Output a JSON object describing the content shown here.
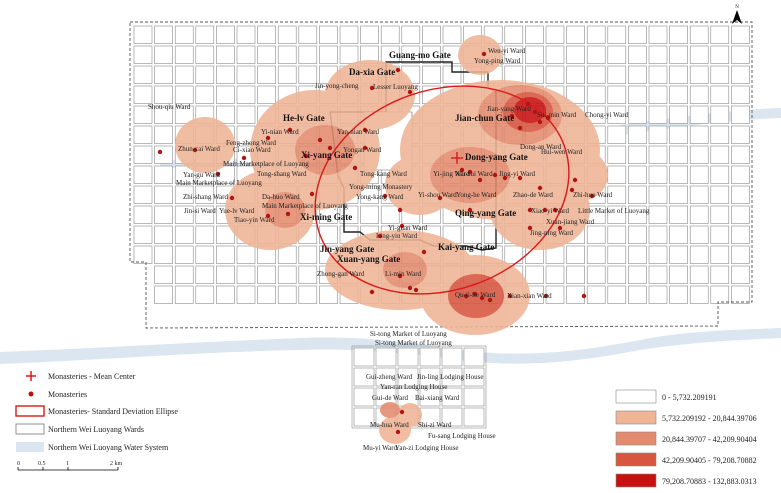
{
  "north_label": "N",
  "colors": {
    "water": "#dbe6f1",
    "ward_stroke": "#8a8a8a",
    "ellipse": "#d91a1a",
    "point": "#b21414",
    "density": [
      "#ffffff",
      "#efb596",
      "#e38b6e",
      "#d8553f",
      "#c81010"
    ]
  },
  "gates": [
    "Guang-mo Gate",
    "Da-xia Gate",
    "He-lv Gate",
    "Jian-chun Gate",
    "Xi-yang Gate",
    "Dong-yang Gate",
    "Xi-ming Gate",
    "Qing-yang Gate",
    "Jin-yang Gate",
    "Kai-yang Gate",
    "Xuan-yang Gate"
  ],
  "wards": [
    "Wen-yi Ward",
    "Yong-ping Ward",
    "Jin-yong-cheng",
    "Lesser Luoyang",
    "Shou-qiu Ward",
    "Jian-yang Ward",
    "Sui-min Ward",
    "Chong-yi Ward",
    "Yi-nian Ward",
    "Yan-nian Ward",
    "Feng-zhong Ward",
    "Ci-xiao Ward",
    "Zhun-cai Ward",
    "Yongan Ward",
    "Dong-an Ward",
    "Hui-wen Ward",
    "Main Marketplace of Luoyang",
    "Yan-gu Ward",
    "Tong-shang Ward",
    "Tong-kang Ward",
    "Xiu-sui Ward",
    "Jing-yi Ward",
    "Main Marketplace of Luoyang",
    "Yong-ming Monastery",
    "Zhi-shang Ward",
    "Yong-kang Ward",
    "Yi-jing Ward",
    "Zhao-de Ward",
    "Zhi-huo Ward",
    "Da-huo Ward",
    "Yi-shou Ward",
    "Yong-he Ward",
    "Main Marketplace of Luoyang",
    "Xiao-yi Ward",
    "Little Market of Luoyang",
    "Jin-si Ward",
    "Yue-lv Ward",
    "Xuan-jiang Ward",
    "Tiao-yin Ward",
    "Yi-guan Ward",
    "Jing-ning Ward",
    "Ling-yin Ward",
    "Zhong-gan Ward",
    "Li-min Ward",
    "Qu-ji-he Ward",
    "Xian-xian Ward",
    "Si-tong Market of Luoyang",
    "Si-tong Market of Luoyang",
    "Gui-zheng Ward",
    "Jin-ling Lodging House",
    "Yan-ran Lodging House",
    "Gui-de Ward",
    "Bai-xiang Ward",
    "Mu-hua Ward",
    "Shi-zi Ward",
    "Fu-sang Lodging House",
    "Mu-yi Ward",
    "Yan-zi Lodging House"
  ],
  "legend": {
    "mean_center": "Monasteries - Mean Center",
    "monasteries": "Monasteries",
    "ellipse": "Monasteries- Standard Deviation Ellipse",
    "wards": "Northern Wei Luoyang Wards",
    "water": "Northern Wei Luoyang Water System"
  },
  "scale": {
    "ticks": [
      "0",
      "0.5",
      "1",
      "2 km"
    ]
  },
  "density_classes": [
    "0 - 5,732.209191",
    "5,732.209192 - 20,844.39706",
    "20,844.39707 - 42,209.90404",
    "42,209.90405 - 79,208.70882",
    "79,208.70883 - 132,883.0313"
  ]
}
